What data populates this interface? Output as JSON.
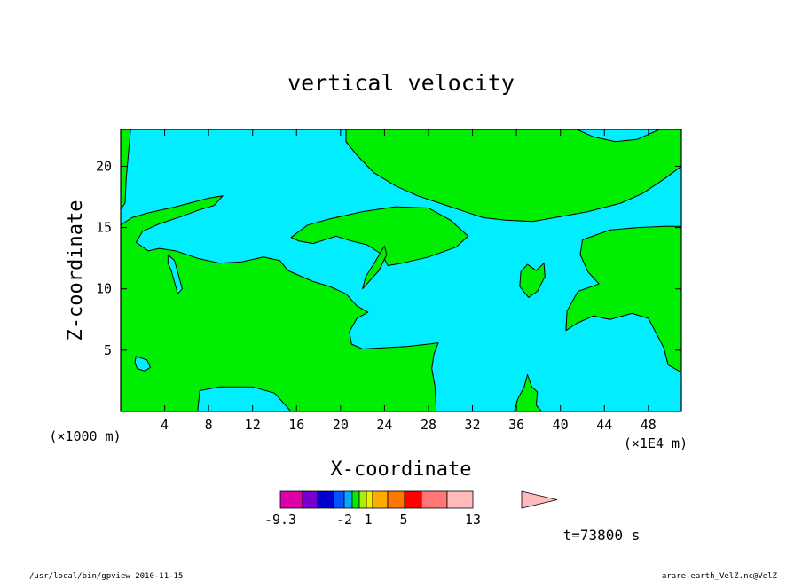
{
  "chart_data": {
    "type": "contour",
    "title": "vertical velocity",
    "xlabel": "X-coordinate",
    "ylabel": "Z-coordinate",
    "x_unit_note": "(×1E4 m)",
    "y_unit_note": "(×1000 m)",
    "xlim": [
      0,
      51
    ],
    "ylim": [
      0,
      23
    ],
    "xticks": [
      4,
      8,
      12,
      16,
      20,
      24,
      28,
      32,
      36,
      40,
      44,
      48
    ],
    "yticks": [
      5,
      10,
      15,
      20
    ],
    "colors": {
      "positive": "#00ee00",
      "negative": "#00eeff",
      "outline": "#000000"
    },
    "regions": [
      {
        "sign": "positive",
        "polygon": [
          [
            0,
            23
          ],
          [
            0.9,
            23
          ],
          [
            0.7,
            21
          ],
          [
            0.5,
            19
          ],
          [
            0.4,
            17
          ],
          [
            0,
            16.5
          ]
        ]
      },
      {
        "sign": "positive",
        "polygon": [
          [
            0,
            15.2
          ],
          [
            1,
            15.8
          ],
          [
            2.5,
            16.2
          ],
          [
            5,
            16.7
          ],
          [
            8,
            17.4
          ],
          [
            9.3,
            17.6
          ],
          [
            8.5,
            16.8
          ],
          [
            7,
            16.4
          ],
          [
            5.5,
            15.9
          ],
          [
            3.5,
            15.3
          ],
          [
            2,
            14.7
          ],
          [
            1.4,
            13.8
          ],
          [
            2.5,
            13.1
          ],
          [
            3.5,
            13.3
          ],
          [
            5,
            13.1
          ],
          [
            7,
            12.5
          ],
          [
            9,
            12.1
          ],
          [
            11,
            12.2
          ],
          [
            13,
            12.6
          ],
          [
            14.5,
            12.3
          ],
          [
            15.2,
            11.5
          ],
          [
            16.2,
            11.1
          ],
          [
            17.5,
            10.6
          ],
          [
            19,
            10.2
          ],
          [
            20.5,
            9.6
          ],
          [
            21.5,
            8.6
          ],
          [
            22.5,
            8.1
          ],
          [
            21.5,
            7.6
          ],
          [
            20.8,
            6.5
          ],
          [
            21,
            5.5
          ],
          [
            22,
            5.1
          ],
          [
            24,
            5.2
          ],
          [
            26,
            5.3
          ],
          [
            28,
            5.5
          ],
          [
            28.9,
            5.6
          ],
          [
            28.5,
            4.7
          ],
          [
            28.3,
            3.5
          ],
          [
            28.6,
            2
          ],
          [
            28.7,
            0
          ],
          [
            26,
            0
          ],
          [
            22,
            0
          ],
          [
            18,
            0
          ],
          [
            15.5,
            0
          ],
          [
            14,
            1.5
          ],
          [
            12,
            2
          ],
          [
            9,
            2
          ],
          [
            7.2,
            1.7
          ],
          [
            7,
            0
          ],
          [
            0,
            0
          ]
        ]
      },
      {
        "sign": "positive",
        "polygon": [
          [
            15.5,
            14.2
          ],
          [
            17,
            15.2
          ],
          [
            19,
            15.7
          ],
          [
            22,
            16.3
          ],
          [
            25,
            16.7
          ],
          [
            28,
            16.6
          ],
          [
            30,
            15.6
          ],
          [
            31.6,
            14.3
          ],
          [
            30.5,
            13.4
          ],
          [
            28,
            12.6
          ],
          [
            25.6,
            12.1
          ],
          [
            24.3,
            11.9
          ],
          [
            23.8,
            12.8
          ],
          [
            22.4,
            13.6
          ],
          [
            21,
            13.9
          ],
          [
            19.6,
            14.3
          ],
          [
            17.5,
            13.7
          ],
          [
            16.2,
            13.9
          ]
        ]
      },
      {
        "sign": "positive",
        "polygon": [
          [
            22,
            10
          ],
          [
            23.5,
            11.5
          ],
          [
            24.2,
            12.8
          ],
          [
            24,
            13.5
          ],
          [
            23,
            12
          ],
          [
            22.3,
            11
          ]
        ]
      },
      {
        "sign": "positive",
        "polygon": [
          [
            20.5,
            23
          ],
          [
            41.5,
            23
          ],
          [
            43,
            22.4
          ],
          [
            45,
            22
          ],
          [
            47,
            22.2
          ],
          [
            49,
            23
          ],
          [
            51,
            23
          ],
          [
            51,
            20
          ],
          [
            49.5,
            19
          ],
          [
            47.5,
            17.8
          ],
          [
            45.5,
            17
          ],
          [
            42.5,
            16.3
          ],
          [
            40,
            15.9
          ],
          [
            37.5,
            15.5
          ],
          [
            35,
            15.6
          ],
          [
            33,
            15.8
          ],
          [
            31,
            16.4
          ],
          [
            29,
            17
          ],
          [
            27,
            17.6
          ],
          [
            25,
            18.4
          ],
          [
            23,
            19.5
          ],
          [
            21.5,
            20.9
          ],
          [
            20.5,
            22
          ]
        ]
      },
      {
        "sign": "positive",
        "polygon": [
          [
            42,
            14
          ],
          [
            44.5,
            14.8
          ],
          [
            47,
            15
          ],
          [
            49.5,
            15.1
          ],
          [
            51,
            15.1
          ],
          [
            51,
            3.2
          ],
          [
            49.8,
            3.8
          ],
          [
            49.4,
            5.2
          ],
          [
            48,
            7.6
          ],
          [
            46.5,
            8
          ],
          [
            44.5,
            7.5
          ],
          [
            43,
            7.8
          ],
          [
            41.5,
            7.2
          ],
          [
            40.5,
            6.6
          ],
          [
            40.6,
            8.2
          ],
          [
            41.6,
            9.8
          ],
          [
            43.5,
            10.4
          ],
          [
            42.5,
            11.4
          ],
          [
            41.8,
            12.8
          ]
        ]
      },
      {
        "sign": "positive",
        "polygon": [
          [
            36.3,
            10.2
          ],
          [
            37.1,
            9.3
          ],
          [
            37.9,
            9.8
          ],
          [
            38.6,
            11
          ],
          [
            38.5,
            12.1
          ],
          [
            37.8,
            11.5
          ],
          [
            37,
            12
          ],
          [
            36.4,
            11.4
          ]
        ]
      },
      {
        "sign": "positive",
        "polygon": [
          [
            35.8,
            0
          ],
          [
            38.3,
            0
          ],
          [
            37.8,
            0.5
          ],
          [
            37.9,
            1.6
          ],
          [
            37.4,
            2
          ],
          [
            37,
            3
          ],
          [
            36.7,
            2
          ],
          [
            36.1,
            1
          ]
        ]
      },
      {
        "sign": "negative",
        "polygon": [
          [
            1.4,
            4.5
          ],
          [
            2.4,
            4.2
          ],
          [
            2.7,
            3.6
          ],
          [
            2.2,
            3.3
          ],
          [
            1.5,
            3.5
          ],
          [
            1.3,
            4
          ]
        ]
      },
      {
        "sign": "negative",
        "polygon": [
          [
            4.3,
            12.8
          ],
          [
            4.9,
            12.3
          ],
          [
            5.6,
            10
          ],
          [
            5.2,
            9.6
          ],
          [
            4.6,
            11.5
          ],
          [
            4.3,
            12.1
          ]
        ]
      }
    ],
    "colorbar": {
      "labels": [
        "-9.3",
        "-2",
        "1",
        "5",
        "13"
      ],
      "colors": [
        "#dd00aa",
        "#7700cc",
        "#0000cc",
        "#0055ff",
        "#00aaff",
        "#00ee00",
        "#aaee00",
        "#eeee00",
        "#ffaa00",
        "#ff7700",
        "#ff0000",
        "#ff7777",
        "#ffbbbb"
      ]
    },
    "time_label": "t=73800  s"
  },
  "footer": {
    "left": "/usr/local/bin/gpview  2010-11-15",
    "right": "arare-earth_VelZ.nc@VelZ"
  }
}
